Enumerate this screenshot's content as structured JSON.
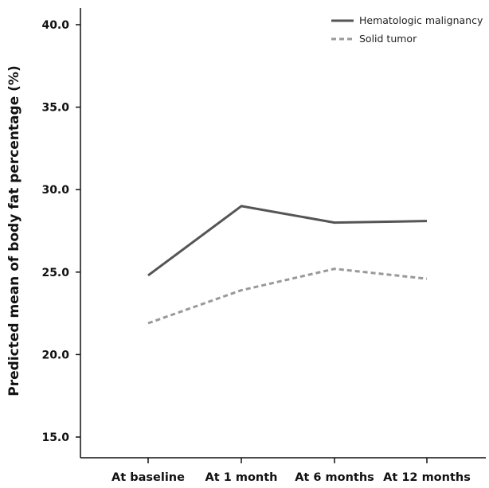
{
  "chart_data": {
    "type": "line",
    "title": "",
    "xlabel": "",
    "ylabel": "Predicted mean of body fat percentage (%)",
    "categories": [
      "At baseline",
      "At 1 month",
      "At 6 months",
      "At 12 months"
    ],
    "ylim": [
      15.0,
      40.0
    ],
    "yticks": [
      "15.0",
      "20.0",
      "25.0",
      "30.0",
      "35.0",
      "40.0"
    ],
    "grid": false,
    "legend_position": "top-right",
    "series": [
      {
        "name": "Hematologic malignancy",
        "values": [
          24.8,
          29.0,
          28.0,
          28.1
        ],
        "color": "#555555",
        "style": "solid"
      },
      {
        "name": "Solid tumor",
        "values": [
          21.9,
          23.9,
          25.2,
          24.6
        ],
        "color": "#999999",
        "style": "dashed"
      }
    ]
  }
}
